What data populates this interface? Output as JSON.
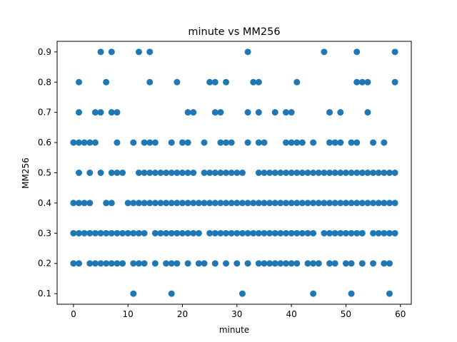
{
  "chart_data": {
    "type": "scatter",
    "title": "minute vs MM256",
    "xlabel": "minute",
    "ylabel": "MM256",
    "xlim": [
      -3,
      62
    ],
    "ylim": [
      0.065,
      0.935
    ],
    "x_ticks": [
      0,
      10,
      20,
      30,
      40,
      50,
      60
    ],
    "y_ticks": [
      0.1,
      0.2,
      0.3,
      0.4,
      0.5,
      0.6,
      0.7,
      0.8,
      0.9
    ],
    "grid": false,
    "marker_color": "#1f77b4",
    "series": [
      {
        "points": [
          [
            11,
            0.1
          ],
          [
            18,
            0.1
          ],
          [
            31,
            0.1
          ],
          [
            44,
            0.1
          ],
          [
            51,
            0.1
          ],
          [
            58,
            0.1
          ],
          [
            0,
            0.2
          ],
          [
            1,
            0.2
          ],
          [
            3,
            0.2
          ],
          [
            4,
            0.2
          ],
          [
            5,
            0.2
          ],
          [
            6,
            0.2
          ],
          [
            7,
            0.2
          ],
          [
            8,
            0.2
          ],
          [
            9,
            0.2
          ],
          [
            11,
            0.2
          ],
          [
            12,
            0.2
          ],
          [
            13,
            0.2
          ],
          [
            15,
            0.2
          ],
          [
            17,
            0.2
          ],
          [
            18,
            0.2
          ],
          [
            19,
            0.2
          ],
          [
            21,
            0.2
          ],
          [
            23,
            0.2
          ],
          [
            24,
            0.2
          ],
          [
            26,
            0.2
          ],
          [
            28,
            0.2
          ],
          [
            30,
            0.2
          ],
          [
            32,
            0.2
          ],
          [
            34,
            0.2
          ],
          [
            35,
            0.2
          ],
          [
            36,
            0.2
          ],
          [
            37,
            0.2
          ],
          [
            38,
            0.2
          ],
          [
            39,
            0.2
          ],
          [
            40,
            0.2
          ],
          [
            41,
            0.2
          ],
          [
            43,
            0.2
          ],
          [
            44,
            0.2
          ],
          [
            45,
            0.2
          ],
          [
            47,
            0.2
          ],
          [
            48,
            0.2
          ],
          [
            50,
            0.2
          ],
          [
            51,
            0.2
          ],
          [
            53,
            0.2
          ],
          [
            55,
            0.2
          ],
          [
            57,
            0.2
          ],
          [
            58,
            0.2
          ],
          [
            0,
            0.3
          ],
          [
            1,
            0.3
          ],
          [
            2,
            0.3
          ],
          [
            3,
            0.3
          ],
          [
            4,
            0.3
          ],
          [
            5,
            0.3
          ],
          [
            6,
            0.3
          ],
          [
            7,
            0.3
          ],
          [
            8,
            0.3
          ],
          [
            9,
            0.3
          ],
          [
            10,
            0.3
          ],
          [
            11,
            0.3
          ],
          [
            12,
            0.3
          ],
          [
            13,
            0.3
          ],
          [
            15,
            0.3
          ],
          [
            16,
            0.3
          ],
          [
            17,
            0.3
          ],
          [
            18,
            0.3
          ],
          [
            19,
            0.3
          ],
          [
            20,
            0.3
          ],
          [
            21,
            0.3
          ],
          [
            22,
            0.3
          ],
          [
            23,
            0.3
          ],
          [
            25,
            0.3
          ],
          [
            26,
            0.3
          ],
          [
            27,
            0.3
          ],
          [
            28,
            0.3
          ],
          [
            29,
            0.3
          ],
          [
            30,
            0.3
          ],
          [
            31,
            0.3
          ],
          [
            32,
            0.3
          ],
          [
            33,
            0.3
          ],
          [
            34,
            0.3
          ],
          [
            35,
            0.3
          ],
          [
            36,
            0.3
          ],
          [
            37,
            0.3
          ],
          [
            38,
            0.3
          ],
          [
            39,
            0.3
          ],
          [
            40,
            0.3
          ],
          [
            41,
            0.3
          ],
          [
            42,
            0.3
          ],
          [
            43,
            0.3
          ],
          [
            44,
            0.3
          ],
          [
            46,
            0.3
          ],
          [
            47,
            0.3
          ],
          [
            48,
            0.3
          ],
          [
            49,
            0.3
          ],
          [
            50,
            0.3
          ],
          [
            51,
            0.3
          ],
          [
            52,
            0.3
          ],
          [
            53,
            0.3
          ],
          [
            55,
            0.3
          ],
          [
            56,
            0.3
          ],
          [
            57,
            0.3
          ],
          [
            58,
            0.3
          ],
          [
            59,
            0.3
          ],
          [
            0,
            0.4
          ],
          [
            1,
            0.4
          ],
          [
            2,
            0.4
          ],
          [
            3,
            0.4
          ],
          [
            6,
            0.4
          ],
          [
            7,
            0.4
          ],
          [
            10,
            0.4
          ],
          [
            11,
            0.4
          ],
          [
            12,
            0.4
          ],
          [
            13,
            0.4
          ],
          [
            14,
            0.4
          ],
          [
            15,
            0.4
          ],
          [
            16,
            0.4
          ],
          [
            17,
            0.4
          ],
          [
            18,
            0.4
          ],
          [
            19,
            0.4
          ],
          [
            20,
            0.4
          ],
          [
            21,
            0.4
          ],
          [
            22,
            0.4
          ],
          [
            23,
            0.4
          ],
          [
            24,
            0.4
          ],
          [
            25,
            0.4
          ],
          [
            26,
            0.4
          ],
          [
            27,
            0.4
          ],
          [
            28,
            0.4
          ],
          [
            29,
            0.4
          ],
          [
            30,
            0.4
          ],
          [
            31,
            0.4
          ],
          [
            32,
            0.4
          ],
          [
            33,
            0.4
          ],
          [
            34,
            0.4
          ],
          [
            35,
            0.4
          ],
          [
            36,
            0.4
          ],
          [
            37,
            0.4
          ],
          [
            38,
            0.4
          ],
          [
            39,
            0.4
          ],
          [
            40,
            0.4
          ],
          [
            41,
            0.4
          ],
          [
            42,
            0.4
          ],
          [
            43,
            0.4
          ],
          [
            44,
            0.4
          ],
          [
            45,
            0.4
          ],
          [
            46,
            0.4
          ],
          [
            47,
            0.4
          ],
          [
            48,
            0.4
          ],
          [
            49,
            0.4
          ],
          [
            50,
            0.4
          ],
          [
            51,
            0.4
          ],
          [
            52,
            0.4
          ],
          [
            53,
            0.4
          ],
          [
            54,
            0.4
          ],
          [
            55,
            0.4
          ],
          [
            56,
            0.4
          ],
          [
            57,
            0.4
          ],
          [
            58,
            0.4
          ],
          [
            59,
            0.4
          ],
          [
            1,
            0.5
          ],
          [
            3,
            0.5
          ],
          [
            5,
            0.5
          ],
          [
            7,
            0.5
          ],
          [
            8,
            0.5
          ],
          [
            9,
            0.5
          ],
          [
            12,
            0.5
          ],
          [
            13,
            0.5
          ],
          [
            14,
            0.5
          ],
          [
            15,
            0.5
          ],
          [
            16,
            0.5
          ],
          [
            17,
            0.5
          ],
          [
            18,
            0.5
          ],
          [
            19,
            0.5
          ],
          [
            20,
            0.5
          ],
          [
            21,
            0.5
          ],
          [
            22,
            0.5
          ],
          [
            24,
            0.5
          ],
          [
            25,
            0.5
          ],
          [
            26,
            0.5
          ],
          [
            27,
            0.5
          ],
          [
            28,
            0.5
          ],
          [
            29,
            0.5
          ],
          [
            30,
            0.5
          ],
          [
            31,
            0.5
          ],
          [
            34,
            0.5
          ],
          [
            35,
            0.5
          ],
          [
            36,
            0.5
          ],
          [
            37,
            0.5
          ],
          [
            38,
            0.5
          ],
          [
            39,
            0.5
          ],
          [
            40,
            0.5
          ],
          [
            41,
            0.5
          ],
          [
            42,
            0.5
          ],
          [
            43,
            0.5
          ],
          [
            44,
            0.5
          ],
          [
            45,
            0.5
          ],
          [
            46,
            0.5
          ],
          [
            47,
            0.5
          ],
          [
            48,
            0.5
          ],
          [
            49,
            0.5
          ],
          [
            50,
            0.5
          ],
          [
            51,
            0.5
          ],
          [
            52,
            0.5
          ],
          [
            53,
            0.5
          ],
          [
            54,
            0.5
          ],
          [
            55,
            0.5
          ],
          [
            56,
            0.5
          ],
          [
            57,
            0.5
          ],
          [
            58,
            0.5
          ],
          [
            59,
            0.5
          ],
          [
            0,
            0.6
          ],
          [
            1,
            0.6
          ],
          [
            2,
            0.6
          ],
          [
            3,
            0.6
          ],
          [
            4,
            0.6
          ],
          [
            8,
            0.6
          ],
          [
            11,
            0.6
          ],
          [
            13,
            0.6
          ],
          [
            14,
            0.6
          ],
          [
            15,
            0.6
          ],
          [
            18,
            0.6
          ],
          [
            20,
            0.6
          ],
          [
            21,
            0.6
          ],
          [
            24,
            0.6
          ],
          [
            27,
            0.6
          ],
          [
            28,
            0.6
          ],
          [
            29,
            0.6
          ],
          [
            32,
            0.6
          ],
          [
            34,
            0.6
          ],
          [
            35,
            0.6
          ],
          [
            39,
            0.6
          ],
          [
            40,
            0.6
          ],
          [
            41,
            0.6
          ],
          [
            42,
            0.6
          ],
          [
            44,
            0.6
          ],
          [
            47,
            0.6
          ],
          [
            48,
            0.6
          ],
          [
            49,
            0.6
          ],
          [
            51,
            0.6
          ],
          [
            52,
            0.6
          ],
          [
            55,
            0.6
          ],
          [
            57,
            0.6
          ],
          [
            1,
            0.7
          ],
          [
            4,
            0.7
          ],
          [
            5,
            0.7
          ],
          [
            7,
            0.7
          ],
          [
            8,
            0.7
          ],
          [
            21,
            0.7
          ],
          [
            22,
            0.7
          ],
          [
            26,
            0.7
          ],
          [
            27,
            0.7
          ],
          [
            32,
            0.7
          ],
          [
            34,
            0.7
          ],
          [
            37,
            0.7
          ],
          [
            39,
            0.7
          ],
          [
            40,
            0.7
          ],
          [
            47,
            0.7
          ],
          [
            49,
            0.7
          ],
          [
            54,
            0.7
          ],
          [
            1,
            0.8
          ],
          [
            6,
            0.8
          ],
          [
            14,
            0.8
          ],
          [
            19,
            0.8
          ],
          [
            25,
            0.8
          ],
          [
            26,
            0.8
          ],
          [
            28,
            0.8
          ],
          [
            33,
            0.8
          ],
          [
            34,
            0.8
          ],
          [
            41,
            0.8
          ],
          [
            52,
            0.8
          ],
          [
            53,
            0.8
          ],
          [
            54,
            0.8
          ],
          [
            59,
            0.8
          ],
          [
            5,
            0.9
          ],
          [
            7,
            0.9
          ],
          [
            12,
            0.9
          ],
          [
            14,
            0.9
          ],
          [
            32,
            0.9
          ],
          [
            46,
            0.9
          ],
          [
            52,
            0.9
          ],
          [
            59,
            0.9
          ]
        ]
      }
    ]
  }
}
